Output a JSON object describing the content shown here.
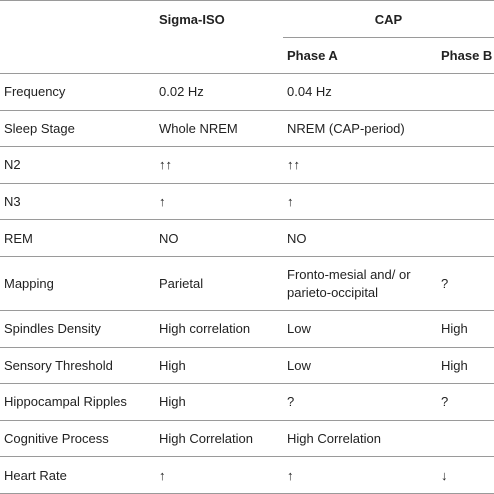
{
  "header": {
    "col_sigma": "Sigma-ISO",
    "col_cap": "CAP",
    "sub_phase_a": "Phase A",
    "sub_phase_b": "Phase B"
  },
  "rows": [
    {
      "label": "Frequency",
      "sigma": "0.02 Hz",
      "phase_a": "0.04 Hz",
      "phase_b": ""
    },
    {
      "label": "Sleep Stage",
      "sigma": "Whole NREM",
      "phase_a": "NREM (CAP-period)",
      "phase_b": ""
    },
    {
      "label": "N2",
      "sigma": "↑↑",
      "phase_a": "↑↑",
      "phase_b": ""
    },
    {
      "label": "N3",
      "sigma": "↑",
      "phase_a": "↑",
      "phase_b": ""
    },
    {
      "label": "REM",
      "sigma": "NO",
      "phase_a": "NO",
      "phase_b": ""
    },
    {
      "label": "Mapping",
      "sigma": "Parietal",
      "phase_a": "Fronto-mesial and/ or parieto-occipital",
      "phase_b": "?"
    },
    {
      "label": "Spindles Density",
      "sigma": "High correlation",
      "phase_a": "Low",
      "phase_b": "High"
    },
    {
      "label": "Sensory Threshold",
      "sigma": "High",
      "phase_a": "Low",
      "phase_b": "High"
    },
    {
      "label": "Hippocampal Ripples",
      "sigma": "High",
      "phase_a": "?",
      "phase_b": "?"
    },
    {
      "label": "Cognitive Process",
      "sigma": "High Correlation",
      "phase_a": "High Correlation",
      "phase_b": ""
    },
    {
      "label": "Heart Rate",
      "sigma": "↑",
      "phase_a": "↑",
      "phase_b": "↓"
    }
  ]
}
